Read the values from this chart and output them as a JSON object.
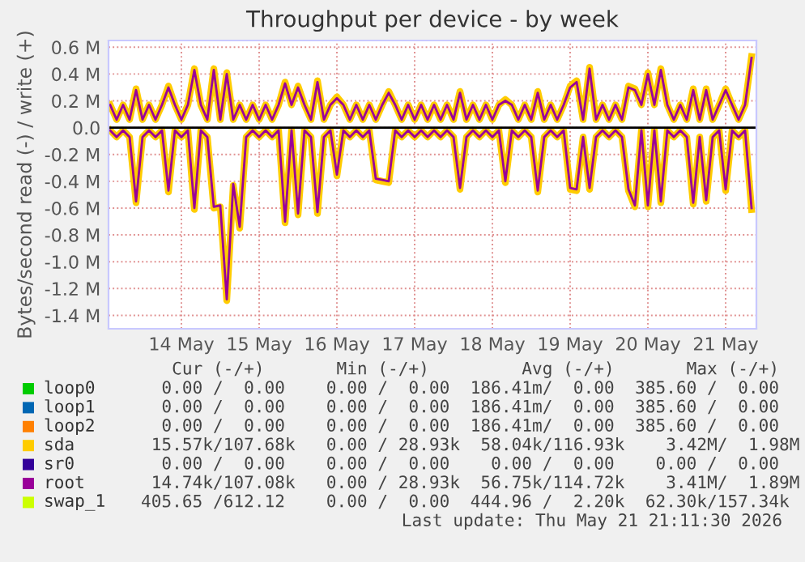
{
  "chart_data": {
    "type": "line",
    "title": "Throughput per device - by week",
    "ylabel": "Bytes/second read (-) / write (+)",
    "x": [
      "2026-05-13T14:00",
      "2026-05-13T16:00",
      "2026-05-13T18:00",
      "2026-05-13T20:00",
      "2026-05-13T22:00",
      "2026-05-14T00:00",
      "2026-05-14T02:00",
      "2026-05-14T04:00",
      "2026-05-14T06:00",
      "2026-05-14T08:00",
      "2026-05-14T10:00",
      "2026-05-14T12:00",
      "2026-05-14T14:00",
      "2026-05-14T16:00",
      "2026-05-14T18:00",
      "2026-05-14T20:00",
      "2026-05-14T22:00",
      "2026-05-15T00:00",
      "2026-05-15T02:00",
      "2026-05-15T04:00",
      "2026-05-15T06:00",
      "2026-05-15T08:00",
      "2026-05-15T10:00",
      "2026-05-15T12:00",
      "2026-05-15T14:00",
      "2026-05-15T16:00",
      "2026-05-15T18:00",
      "2026-05-15T20:00",
      "2026-05-15T22:00",
      "2026-05-16T00:00",
      "2026-05-16T02:00",
      "2026-05-16T04:00",
      "2026-05-16T06:00",
      "2026-05-16T08:00",
      "2026-05-16T10:00",
      "2026-05-16T12:00",
      "2026-05-16T14:00",
      "2026-05-16T16:00",
      "2026-05-16T18:00",
      "2026-05-16T20:00",
      "2026-05-16T22:00",
      "2026-05-17T00:00",
      "2026-05-17T02:00",
      "2026-05-17T04:00",
      "2026-05-17T06:00",
      "2026-05-17T08:00",
      "2026-05-17T10:00",
      "2026-05-17T12:00",
      "2026-05-17T14:00",
      "2026-05-17T16:00",
      "2026-05-17T18:00",
      "2026-05-17T20:00",
      "2026-05-17T22:00",
      "2026-05-18T00:00",
      "2026-05-18T02:00",
      "2026-05-18T04:00",
      "2026-05-18T06:00",
      "2026-05-18T08:00",
      "2026-05-18T10:00",
      "2026-05-18T12:00",
      "2026-05-18T14:00",
      "2026-05-18T16:00",
      "2026-05-18T18:00",
      "2026-05-18T20:00",
      "2026-05-18T22:00",
      "2026-05-19T00:00",
      "2026-05-19T02:00",
      "2026-05-19T04:00",
      "2026-05-19T06:00",
      "2026-05-19T08:00",
      "2026-05-19T10:00",
      "2026-05-19T12:00",
      "2026-05-19T14:00",
      "2026-05-19T16:00",
      "2026-05-19T18:00",
      "2026-05-19T20:00",
      "2026-05-19T22:00",
      "2026-05-20T00:00",
      "2026-05-20T02:00",
      "2026-05-20T04:00",
      "2026-05-20T06:00",
      "2026-05-20T08:00",
      "2026-05-20T10:00",
      "2026-05-20T12:00",
      "2026-05-20T14:00",
      "2026-05-20T16:00",
      "2026-05-20T18:00",
      "2026-05-20T20:00",
      "2026-05-20T22:00",
      "2026-05-21T00:00",
      "2026-05-21T02:00",
      "2026-05-21T04:00",
      "2026-05-21T06:00",
      "2026-05-21T08:00",
      "2026-05-21T10:00",
      "2026-05-21T12:00",
      "2026-05-21T14:00",
      "2026-05-21T16:00",
      "2026-05-21T18:00",
      "2026-05-21T20:00"
    ],
    "series": [
      {
        "name": "loop0",
        "color": "#00cc00",
        "values": [
          null,
          null,
          null,
          null,
          null,
          null,
          null,
          null,
          null,
          null,
          null,
          null,
          null,
          null,
          null,
          null,
          null,
          null,
          null,
          null,
          null,
          null,
          null,
          null,
          null,
          null,
          null,
          null,
          null,
          null,
          null,
          null,
          null,
          null,
          null,
          null,
          null,
          null,
          null,
          null,
          null,
          null,
          null,
          null,
          null,
          null,
          null,
          null,
          null,
          null,
          null,
          null,
          null,
          null,
          null,
          null,
          null,
          null,
          null,
          null,
          null,
          null,
          null,
          null,
          null,
          null,
          null,
          null,
          null,
          null,
          null,
          null,
          null,
          null,
          null,
          null,
          null,
          null,
          null,
          null,
          null,
          null,
          null,
          null,
          null,
          null,
          null,
          null,
          null,
          null,
          null,
          null,
          null,
          null,
          null,
          null,
          null,
          null,
          null,
          null
        ]
      },
      {
        "name": "loop1",
        "color": "#0066b3",
        "values": [
          null,
          null,
          null,
          null,
          null,
          null,
          null,
          null,
          null,
          null,
          null,
          null,
          null,
          null,
          null,
          null,
          null,
          null,
          null,
          null,
          null,
          null,
          null,
          null,
          null,
          null,
          null,
          null,
          null,
          null,
          null,
          null,
          null,
          null,
          null,
          null,
          null,
          null,
          null,
          null,
          null,
          null,
          null,
          null,
          null,
          null,
          null,
          null,
          null,
          null,
          null,
          null,
          null,
          null,
          null,
          null,
          null,
          null,
          null,
          null,
          null,
          null,
          null,
          null,
          null,
          null,
          null,
          null,
          null,
          null,
          null,
          null,
          null,
          null,
          null,
          null,
          null,
          null,
          null,
          null,
          null,
          null,
          null,
          null,
          null,
          null,
          null,
          null,
          null,
          null,
          null,
          null,
          null,
          null,
          null,
          null,
          null,
          null,
          null,
          null
        ]
      },
      {
        "name": "loop2",
        "color": "#ff8000",
        "values": [
          null,
          null,
          null,
          null,
          null,
          null,
          null,
          null,
          null,
          null,
          null,
          null,
          null,
          null,
          null,
          null,
          null,
          null,
          null,
          null,
          null,
          null,
          null,
          null,
          null,
          null,
          null,
          null,
          null,
          null,
          null,
          null,
          null,
          null,
          null,
          null,
          null,
          null,
          null,
          null,
          null,
          null,
          null,
          null,
          null,
          null,
          null,
          null,
          null,
          null,
          null,
          null,
          null,
          null,
          null,
          null,
          null,
          null,
          null,
          null,
          null,
          null,
          null,
          null,
          null,
          null,
          null,
          null,
          null,
          null,
          null,
          null,
          null,
          null,
          null,
          null,
          null,
          null,
          null,
          null,
          null,
          null,
          null,
          null,
          null,
          null,
          null,
          null,
          null,
          null,
          null,
          null,
          null,
          null,
          null,
          null,
          null,
          null,
          null,
          null
        ]
      },
      {
        "name": "sda",
        "color": "#ffcc00",
        "values": [
          0.17,
          0.06,
          0.17,
          0.06,
          0.29,
          0.06,
          0.17,
          0.06,
          0.17,
          0.31,
          0.17,
          0.06,
          0.17,
          0.44,
          0.17,
          0.06,
          0.44,
          0.06,
          0.41,
          0.06,
          0.17,
          0.06,
          0.17,
          0.06,
          0.17,
          0.06,
          0.17,
          0.34,
          0.17,
          0.31,
          0.17,
          0.06,
          0.35,
          0.06,
          0.17,
          0.23,
          0.17,
          0.06,
          0.17,
          0.06,
          0.17,
          0.06,
          0.17,
          0.27,
          0.17,
          0.06,
          0.17,
          0.06,
          0.17,
          0.06,
          0.17,
          0.06,
          0.17,
          0.06,
          0.27,
          0.06,
          0.17,
          0.06,
          0.17,
          0.06,
          0.17,
          0.21,
          0.17,
          0.06,
          0.17,
          0.06,
          0.27,
          0.06,
          0.17,
          0.06,
          0.17,
          0.31,
          0.35,
          0.06,
          0.45,
          0.06,
          0.17,
          0.06,
          0.17,
          0.06,
          0.31,
          0.29,
          0.17,
          0.41,
          0.17,
          0.44,
          0.17,
          0.06,
          0.17,
          0.06,
          0.29,
          0.06,
          0.29,
          0.06,
          0.17,
          0.29,
          0.17,
          0.06,
          0.17,
          0.53
        ]
      },
      {
        "color": "#ffcc00",
        "values": [
          -0.02,
          -0.07,
          -0.02,
          -0.07,
          -0.56,
          -0.07,
          -0.02,
          -0.07,
          -0.02,
          -0.48,
          -0.02,
          -0.07,
          -0.02,
          -0.61,
          -0.02,
          -0.07,
          -0.6,
          -0.59,
          -1.29,
          -0.43,
          -0.75,
          -0.07,
          -0.02,
          -0.07,
          -0.02,
          -0.07,
          -0.02,
          -0.71,
          -0.02,
          -0.65,
          -0.02,
          -0.07,
          -0.64,
          -0.07,
          -0.02,
          -0.36,
          -0.02,
          -0.07,
          -0.02,
          -0.07,
          -0.02,
          -0.39,
          -0.4,
          -0.41,
          -0.02,
          -0.07,
          -0.02,
          -0.07,
          -0.02,
          -0.07,
          -0.02,
          -0.07,
          -0.02,
          -0.07,
          -0.46,
          -0.07,
          -0.02,
          -0.07,
          -0.02,
          -0.07,
          -0.02,
          -0.41,
          -0.02,
          -0.07,
          -0.02,
          -0.07,
          -0.48,
          -0.07,
          -0.02,
          -0.07,
          -0.02,
          -0.46,
          -0.47,
          -0.07,
          -0.46,
          -0.07,
          -0.02,
          -0.07,
          -0.02,
          -0.07,
          -0.47,
          -0.59,
          -0.02,
          -0.59,
          -0.02,
          -0.56,
          -0.02,
          -0.07,
          -0.02,
          -0.07,
          -0.57,
          -0.07,
          -0.55,
          -0.07,
          -0.02,
          -0.47,
          -0.02,
          -0.07,
          -0.02,
          -0.61
        ]
      },
      {
        "name": "sr0",
        "color": "#330099",
        "values": [
          null,
          null,
          null,
          null,
          null,
          null,
          null,
          null,
          null,
          null,
          null,
          null,
          null,
          null,
          null,
          null,
          null,
          null,
          null,
          null,
          null,
          null,
          null,
          null,
          null,
          null,
          null,
          null,
          null,
          null,
          null,
          null,
          null,
          null,
          null,
          null,
          null,
          null,
          null,
          null,
          null,
          null,
          null,
          null,
          null,
          null,
          null,
          null,
          null,
          null,
          null,
          null,
          null,
          null,
          null,
          null,
          null,
          null,
          null,
          null,
          null,
          null,
          null,
          null,
          null,
          null,
          null,
          null,
          null,
          null,
          null,
          null,
          null,
          null,
          null,
          null,
          null,
          null,
          null,
          null,
          null,
          null,
          null,
          null,
          null,
          null,
          null,
          null,
          null,
          null,
          null,
          null,
          null,
          null,
          null,
          null,
          null,
          null,
          null,
          null
        ]
      },
      {
        "name": "root",
        "color": "#990099",
        "values": [
          0.17,
          0.06,
          0.17,
          0.06,
          0.28,
          0.06,
          0.17,
          0.06,
          0.17,
          0.3,
          0.17,
          0.06,
          0.17,
          0.43,
          0.17,
          0.06,
          0.43,
          0.06,
          0.4,
          0.06,
          0.17,
          0.06,
          0.17,
          0.06,
          0.17,
          0.06,
          0.17,
          0.33,
          0.17,
          0.3,
          0.17,
          0.06,
          0.34,
          0.06,
          0.17,
          0.22,
          0.17,
          0.06,
          0.17,
          0.06,
          0.17,
          0.06,
          0.17,
          0.26,
          0.17,
          0.06,
          0.17,
          0.06,
          0.17,
          0.06,
          0.17,
          0.06,
          0.17,
          0.06,
          0.26,
          0.06,
          0.17,
          0.06,
          0.17,
          0.06,
          0.17,
          0.2,
          0.17,
          0.06,
          0.17,
          0.06,
          0.26,
          0.06,
          0.17,
          0.06,
          0.17,
          0.3,
          0.34,
          0.06,
          0.44,
          0.06,
          0.17,
          0.06,
          0.17,
          0.06,
          0.3,
          0.28,
          0.17,
          0.4,
          0.17,
          0.43,
          0.17,
          0.06,
          0.17,
          0.06,
          0.28,
          0.06,
          0.28,
          0.06,
          0.17,
          0.28,
          0.17,
          0.06,
          0.17,
          0.52
        ]
      },
      {
        "color": "#990099",
        "values": [
          -0.02,
          -0.07,
          -0.02,
          -0.07,
          -0.55,
          -0.07,
          -0.02,
          -0.07,
          -0.02,
          -0.47,
          -0.02,
          -0.07,
          -0.02,
          -0.6,
          -0.02,
          -0.07,
          -0.59,
          -0.58,
          -1.28,
          -0.42,
          -0.74,
          -0.07,
          -0.02,
          -0.07,
          -0.02,
          -0.07,
          -0.02,
          -0.7,
          -0.02,
          -0.64,
          -0.02,
          -0.07,
          -0.63,
          -0.07,
          -0.02,
          -0.35,
          -0.02,
          -0.07,
          -0.02,
          -0.07,
          -0.02,
          -0.38,
          -0.39,
          -0.4,
          -0.02,
          -0.07,
          -0.02,
          -0.07,
          -0.02,
          -0.07,
          -0.02,
          -0.07,
          -0.02,
          -0.07,
          -0.45,
          -0.07,
          -0.02,
          -0.07,
          -0.02,
          -0.07,
          -0.02,
          -0.4,
          -0.02,
          -0.07,
          -0.02,
          -0.07,
          -0.47,
          -0.07,
          -0.02,
          -0.07,
          -0.02,
          -0.45,
          -0.46,
          -0.07,
          -0.45,
          -0.07,
          -0.02,
          -0.07,
          -0.02,
          -0.07,
          -0.46,
          -0.58,
          -0.02,
          -0.58,
          -0.02,
          -0.55,
          -0.02,
          -0.07,
          -0.02,
          -0.07,
          -0.56,
          -0.07,
          -0.54,
          -0.07,
          -0.02,
          -0.46,
          -0.02,
          -0.07,
          -0.02,
          -0.6
        ]
      },
      {
        "name": "swap_1",
        "color": "#ccff00",
        "values": [
          null,
          null,
          null,
          null,
          null,
          null,
          null,
          null,
          null,
          null,
          null,
          null,
          null,
          null,
          null,
          null,
          null,
          null,
          null,
          null,
          null,
          null,
          null,
          null,
          null,
          null,
          null,
          null,
          null,
          null,
          null,
          null,
          null,
          null,
          null,
          null,
          null,
          null,
          null,
          null,
          null,
          null,
          null,
          null,
          null,
          null,
          null,
          null,
          null,
          null,
          null,
          null,
          null,
          null,
          null,
          null,
          null,
          null,
          null,
          null,
          null,
          null,
          null,
          null,
          null,
          null,
          null,
          null,
          null,
          null,
          null,
          null,
          null,
          null,
          null,
          null,
          null,
          null,
          null,
          null,
          null,
          null,
          null,
          null,
          null,
          null,
          null,
          null,
          null,
          null,
          null,
          null,
          null,
          null,
          null,
          null,
          null,
          null,
          null,
          null
        ]
      }
    ],
    "xlim": [
      "2026-05-13T13:30",
      "2026-05-21T21:30"
    ],
    "xticks": [
      {
        "value": "2026-05-14T12:00",
        "label": "14 May"
      },
      {
        "value": "2026-05-15T12:00",
        "label": "15 May"
      },
      {
        "value": "2026-05-16T12:00",
        "label": "16 May"
      },
      {
        "value": "2026-05-17T12:00",
        "label": "17 May"
      },
      {
        "value": "2026-05-18T12:00",
        "label": "18 May"
      },
      {
        "value": "2026-05-19T12:00",
        "label": "19 May"
      },
      {
        "value": "2026-05-20T12:00",
        "label": "20 May"
      },
      {
        "value": "2026-05-21T12:00",
        "label": "21 May"
      }
    ],
    "ylim": [
      -1.5,
      0.65
    ],
    "yticks": [
      {
        "value": -1.4,
        "label": "-1.4 M"
      },
      {
        "value": -1.2,
        "label": "-1.2 M"
      },
      {
        "value": -1.0,
        "label": "-1.0 M"
      },
      {
        "value": -0.8,
        "label": "-0.8 M"
      },
      {
        "value": -0.6,
        "label": "-0.6 M"
      },
      {
        "value": -0.4,
        "label": "-0.4 M"
      },
      {
        "value": -0.2,
        "label": "-0.2 M"
      },
      {
        "value": 0,
        "label": "0.0"
      },
      {
        "value": 0.2,
        "label": "0.2 M"
      },
      {
        "value": 0.4,
        "label": "0.4 M"
      },
      {
        "value": 0.6,
        "label": "0.6 M"
      }
    ],
    "grid": true,
    "legend": "bottom",
    "annotations": [
      "   Cur (-/+)       Min (-/+)         Avg (-/+)       Max (-/+)",
      "  0.00 /  0.00    0.00 /  0.00  186.41m/  0.00  385.60 /  0.00 ",
      "  0.00 /  0.00    0.00 /  0.00  186.41m/  0.00  385.60 /  0.00 ",
      "  0.00 /  0.00    0.00 /  0.00  186.41m/  0.00  385.60 /  0.00 ",
      " 15.57k/107.68k   0.00 / 28.93k  58.04k/116.93k    3.42M/  1.98M",
      "  0.00 /  0.00    0.00 /  0.00    0.00 /  0.00    0.00 /  0.00 ",
      " 14.74k/107.08k   0.00 / 28.93k  56.75k/114.72k    3.41M/  1.89M",
      "405.65 /612.12    0.00 /  0.00  444.96 /  2.20k  62.30k/157.34k",
      "Last update: Thu May 21 21:11:30 2026"
    ]
  }
}
